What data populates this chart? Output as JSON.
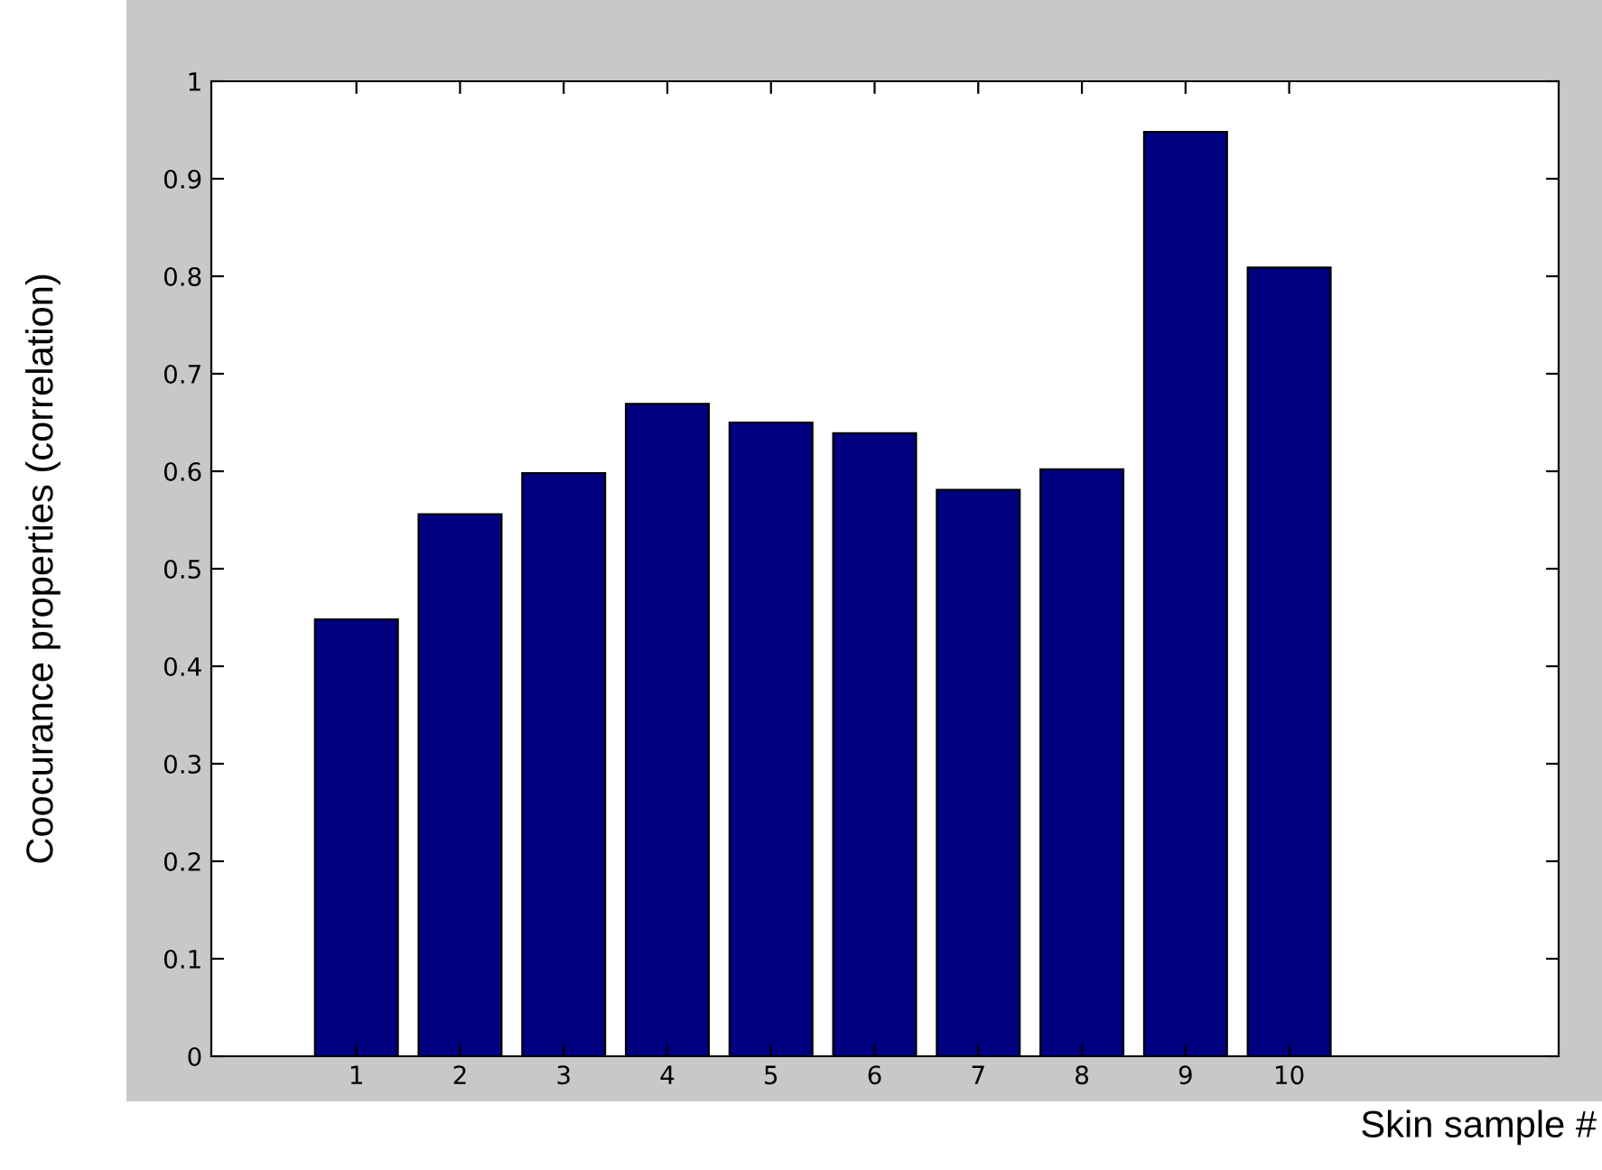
{
  "chart_data": {
    "type": "bar",
    "xlabel": "Skin sample #",
    "ylabel": "Coocurance properties (correlation)",
    "x": [
      1,
      2,
      3,
      4,
      5,
      6,
      7,
      8,
      9,
      10
    ],
    "values": [
      0.448,
      0.556,
      0.598,
      0.669,
      0.65,
      0.639,
      0.581,
      0.602,
      0.948,
      0.809
    ],
    "color": "#000080",
    "xlim": [
      -0.4,
      12.6
    ],
    "xticks": [
      1,
      2,
      3,
      4,
      5,
      6,
      7,
      8,
      9,
      10
    ],
    "ylim": [
      0,
      1
    ],
    "yticks": [
      0,
      0.1,
      0.2,
      0.3,
      0.4,
      0.5,
      0.6,
      0.7,
      0.8,
      0.9,
      1
    ],
    "grid": false,
    "legend": false
  }
}
